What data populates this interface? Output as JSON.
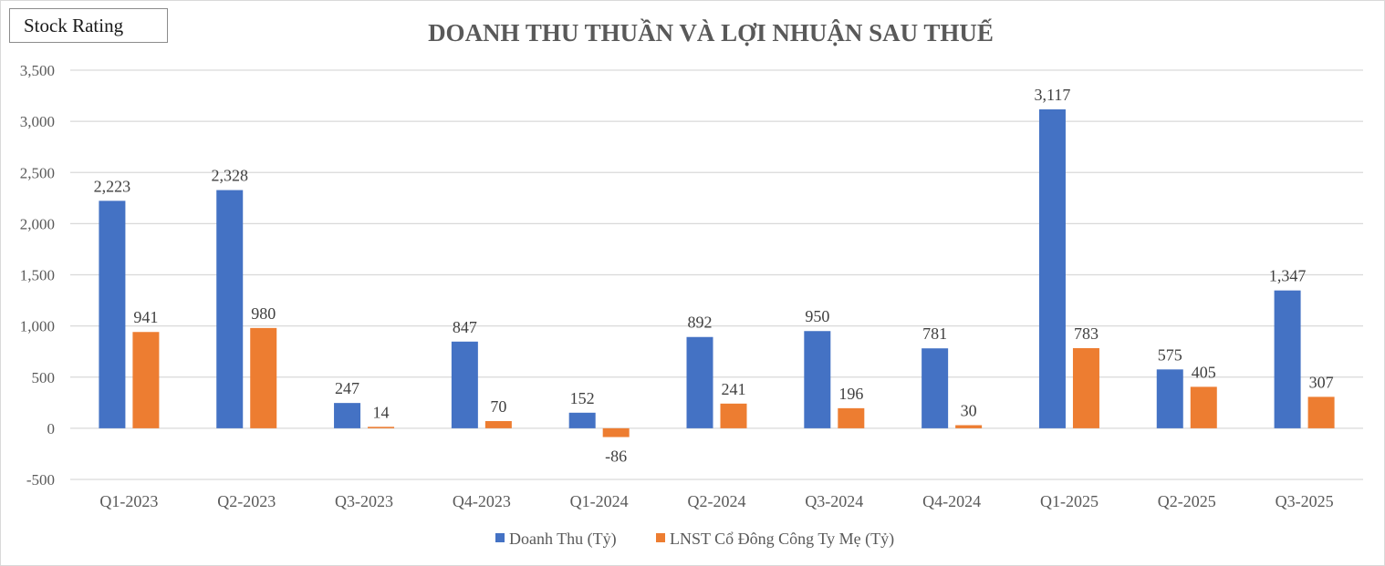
{
  "badge": {
    "label": "Stock Rating"
  },
  "chart_data": {
    "type": "bar",
    "title": "DOANH THU THUẦN VÀ LỢI NHUẬN SAU THUẾ",
    "xlabel": "",
    "ylabel": "",
    "ylim": [
      -500,
      3500
    ],
    "yticks": [
      -500,
      0,
      500,
      1000,
      1500,
      2000,
      2500,
      3000,
      3500
    ],
    "ytick_labels": [
      "-500",
      "0",
      "500",
      "1,000",
      "1,500",
      "2,000",
      "2,500",
      "3,000",
      "3,500"
    ],
    "grid": true,
    "legend_position": "bottom",
    "categories": [
      "Q1-2023",
      "Q2-2023",
      "Q3-2023",
      "Q4-2023",
      "Q1-2024",
      "Q2-2024",
      "Q3-2024",
      "Q4-2024",
      "Q1-2025",
      "Q2-2025",
      "Q3-2025"
    ],
    "series": [
      {
        "name": "Doanh Thu (Tỷ)",
        "color": "#4472C4",
        "values": [
          2223,
          2328,
          247,
          847,
          152,
          892,
          950,
          781,
          3117,
          575,
          1347
        ],
        "labels": [
          "2,223",
          "2,328",
          "247",
          "847",
          "152",
          "892",
          "950",
          "781",
          "3,117",
          "575",
          "1,347"
        ]
      },
      {
        "name": "LNST Cổ Đông Công Ty Mẹ (Tỷ)",
        "color": "#ED7D31",
        "values": [
          941,
          980,
          14,
          70,
          -86,
          241,
          196,
          30,
          783,
          405,
          307
        ],
        "labels": [
          "941",
          "980",
          "14",
          "70",
          "-86",
          "241",
          "196",
          "30",
          "783",
          "405",
          "307"
        ]
      }
    ]
  }
}
